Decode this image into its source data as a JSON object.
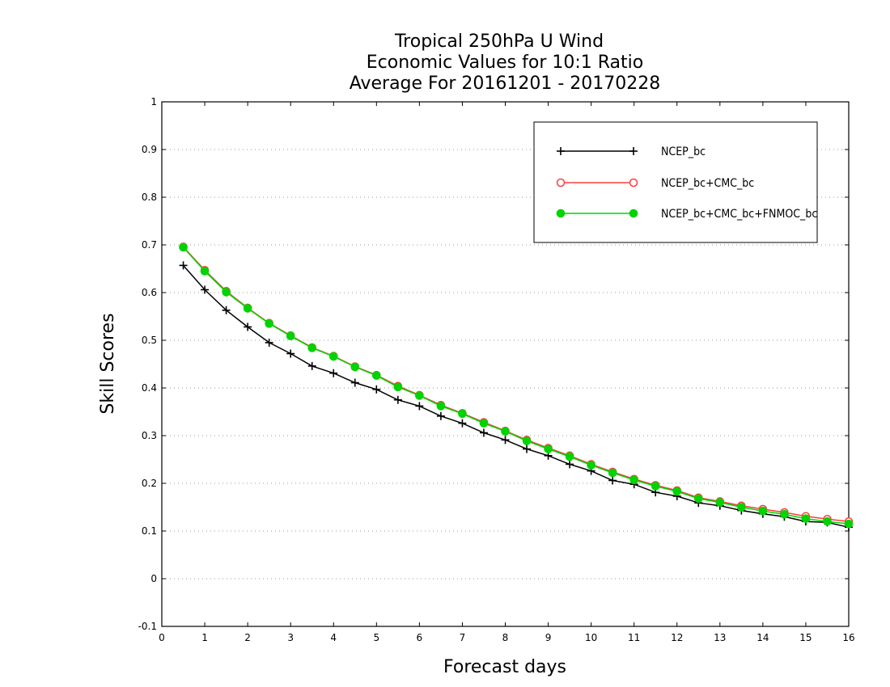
{
  "chart_data": {
    "type": "line",
    "title_lines": [
      "Tropical 250hPa U Wind",
      "Economic Values for 10:1 Ratio",
      "Average For 20161201 - 20170228"
    ],
    "xlabel": "Forecast days",
    "ylabel": "Skill Scores",
    "xlim": [
      0,
      16
    ],
    "ylim": [
      -0.1,
      1
    ],
    "x_ticks": [
      0,
      1,
      2,
      3,
      4,
      5,
      6,
      7,
      8,
      9,
      10,
      11,
      12,
      13,
      14,
      15,
      16
    ],
    "y_ticks": [
      -0.1,
      0,
      0.1,
      0.2,
      0.3,
      0.4,
      0.5,
      0.6,
      0.7,
      0.8,
      0.9,
      1
    ],
    "y_tick_labels": [
      "-0.1",
      "0",
      "0.1",
      "0.2",
      "0.3",
      "0.4",
      "0.5",
      "0.6",
      "0.7",
      "0.8",
      "0.9",
      "1"
    ],
    "grid": "horizontal dotted",
    "legend_position": "top-right",
    "x": [
      0.5,
      1,
      1.5,
      2,
      2.5,
      3,
      3.5,
      4,
      4.5,
      5,
      5.5,
      6,
      6.5,
      7,
      7.5,
      8,
      8.5,
      9,
      9.5,
      10,
      10.5,
      11,
      11.5,
      12,
      12.5,
      13,
      13.5,
      14,
      14.5,
      15,
      15.5,
      16
    ],
    "series": [
      {
        "name": "NCEP_bc",
        "color": "#000000",
        "marker": "plus",
        "values": [
          0.657,
          0.606,
          0.563,
          0.528,
          0.495,
          0.472,
          0.446,
          0.431,
          0.411,
          0.397,
          0.375,
          0.362,
          0.341,
          0.326,
          0.306,
          0.291,
          0.272,
          0.258,
          0.24,
          0.226,
          0.206,
          0.198,
          0.181,
          0.173,
          0.159,
          0.153,
          0.143,
          0.136,
          0.13,
          0.12,
          0.118,
          0.108
        ]
      },
      {
        "name": "NCEP_bc+CMC_bc",
        "color": "#ff3b3b",
        "marker": "open-circle",
        "values": [
          0.696,
          0.647,
          0.603,
          0.568,
          0.536,
          0.51,
          0.485,
          0.467,
          0.445,
          0.427,
          0.404,
          0.385,
          0.364,
          0.347,
          0.328,
          0.31,
          0.291,
          0.274,
          0.258,
          0.24,
          0.224,
          0.209,
          0.196,
          0.185,
          0.17,
          0.162,
          0.153,
          0.146,
          0.139,
          0.131,
          0.125,
          0.12
        ]
      },
      {
        "name": "NCEP_bc+CMC_bc+FNMOC_bc",
        "color": "#00d400",
        "marker": "filled-circle",
        "values": [
          0.695,
          0.645,
          0.601,
          0.567,
          0.535,
          0.509,
          0.484,
          0.466,
          0.444,
          0.426,
          0.402,
          0.384,
          0.362,
          0.346,
          0.326,
          0.309,
          0.289,
          0.272,
          0.256,
          0.238,
          0.222,
          0.207,
          0.194,
          0.183,
          0.168,
          0.16,
          0.15,
          0.142,
          0.135,
          0.126,
          0.12,
          0.115
        ]
      }
    ]
  }
}
